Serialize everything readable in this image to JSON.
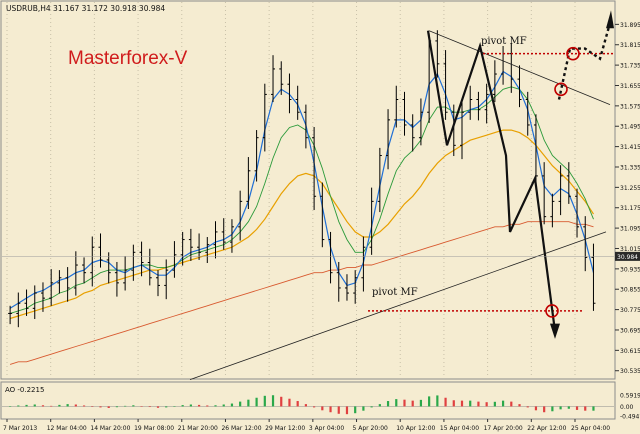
{
  "window": {
    "title": "USDRUB,H4  31.167 31.172 30.918 30.984"
  },
  "brand": {
    "text": "Masterforex-V",
    "color": "#d01c1c"
  },
  "colors": {
    "background": "#f5ecd1",
    "candle": "#000000",
    "ma_fast": "#1f6fd6",
    "ma_mid": "#2b9a3a",
    "ma_slow": "#e8a000",
    "ma_long": "#d85a30",
    "pivot": "#c00000",
    "ao_up": "#2aa84a",
    "ao_down": "#e04040",
    "price_line": "#9a9a9a",
    "price_tag": "#2a2a2a"
  },
  "chart_data": [
    {
      "type": "line",
      "description_label": "candlestick price chart with moving averages",
      "symbol": "USDRUB",
      "timeframe": "H4",
      "ohlc_header": {
        "open": 31.167,
        "high": 31.172,
        "low": 30.918,
        "close": 30.984
      },
      "current_price": "30.984",
      "ylim": [
        30.53,
        31.92
      ],
      "y_ticks": [
        "31.895",
        "31.815",
        "31.735",
        "31.655",
        "31.575",
        "31.495",
        "31.415",
        "31.335",
        "31.255",
        "31.175",
        "31.095",
        "31.015",
        "30.935",
        "30.855",
        "30.775",
        "30.695",
        "30.615",
        "30.535"
      ],
      "x_ticks": [
        "7 Mar 2013",
        "12 Mar 04:00",
        "14 Mar 20:00",
        "19 Mar 08:00",
        "21 Mar 20:00",
        "26 Mar 12:00",
        "29 Mar 12:00",
        "3 Apr 04:00",
        "5 Apr 20:00",
        "10 Apr 12:00",
        "15 Apr 04:00",
        "17 Apr 20:00",
        "22 Apr 12:00",
        "25 Apr 04:00"
      ],
      "price_path": [
        30.76,
        30.8,
        30.78,
        30.84,
        30.82,
        30.88,
        30.9,
        30.86,
        30.95,
        30.92,
        31.02,
        30.97,
        30.92,
        30.88,
        30.93,
        31.0,
        30.96,
        30.9,
        30.87,
        30.93,
        30.99,
        31.05,
        31.02,
        31.0,
        31.03,
        31.08,
        31.04,
        31.1,
        31.2,
        31.32,
        31.45,
        31.62,
        31.72,
        31.66,
        31.6,
        31.55,
        31.45,
        31.22,
        31.05,
        30.92,
        30.86,
        30.84,
        30.9,
        31.02,
        31.2,
        31.38,
        31.52,
        31.6,
        31.5,
        31.45,
        31.55,
        31.83,
        31.74,
        31.55,
        31.42,
        31.55,
        31.6,
        31.56,
        31.62,
        31.7,
        31.78,
        31.68,
        31.6,
        31.5,
        31.3,
        31.14,
        31.2,
        31.3,
        31.22,
        31.1,
        30.98,
        30.8
      ],
      "ma_fast": [
        30.78,
        30.8,
        30.82,
        30.84,
        30.85,
        30.87,
        30.89,
        30.9,
        30.92,
        30.93,
        30.96,
        30.97,
        30.96,
        30.93,
        30.92,
        30.94,
        30.95,
        30.93,
        30.91,
        30.91,
        30.94,
        30.98,
        31.0,
        31.01,
        31.02,
        31.04,
        31.05,
        31.07,
        31.12,
        31.2,
        31.32,
        31.48,
        31.6,
        31.64,
        31.62,
        31.58,
        31.5,
        31.35,
        31.18,
        31.02,
        30.92,
        30.87,
        30.88,
        30.96,
        31.1,
        31.26,
        31.41,
        31.52,
        31.52,
        31.49,
        31.52,
        31.66,
        31.7,
        31.62,
        31.52,
        31.53,
        31.56,
        31.57,
        31.6,
        31.65,
        31.71,
        31.69,
        31.64,
        31.56,
        31.42,
        31.26,
        31.22,
        31.25,
        31.23,
        31.15,
        31.05,
        30.92
      ],
      "ma_mid": [
        30.76,
        30.77,
        30.78,
        30.8,
        30.81,
        30.82,
        30.84,
        30.85,
        30.87,
        30.88,
        30.9,
        30.92,
        30.93,
        30.93,
        30.93,
        30.94,
        30.95,
        30.95,
        30.94,
        30.94,
        30.95,
        30.97,
        30.99,
        31.0,
        31.01,
        31.02,
        31.03,
        31.05,
        31.08,
        31.12,
        31.18,
        31.27,
        31.37,
        31.45,
        31.49,
        31.5,
        31.48,
        31.42,
        31.33,
        31.22,
        31.12,
        31.05,
        31.0,
        31.0,
        31.05,
        31.13,
        31.23,
        31.32,
        31.37,
        31.4,
        31.44,
        31.52,
        31.57,
        31.57,
        31.55,
        31.55,
        31.56,
        31.56,
        31.58,
        31.61,
        31.64,
        31.65,
        31.64,
        31.6,
        31.53,
        31.44,
        31.38,
        31.35,
        31.32,
        31.27,
        31.21,
        31.13
      ],
      "ma_slow": [
        30.74,
        30.75,
        30.76,
        30.77,
        30.78,
        30.79,
        30.8,
        30.81,
        30.82,
        30.84,
        30.85,
        30.87,
        30.88,
        30.89,
        30.9,
        30.91,
        30.92,
        30.93,
        30.93,
        30.94,
        30.95,
        30.96,
        30.97,
        30.98,
        30.99,
        31.0,
        31.01,
        31.02,
        31.04,
        31.06,
        31.09,
        31.13,
        31.18,
        31.23,
        31.27,
        31.3,
        31.31,
        31.3,
        31.27,
        31.22,
        31.17,
        31.12,
        31.08,
        31.06,
        31.06,
        31.08,
        31.11,
        31.15,
        31.19,
        31.22,
        31.26,
        31.31,
        31.35,
        31.38,
        31.4,
        31.42,
        31.44,
        31.45,
        31.46,
        31.47,
        31.48,
        31.48,
        31.47,
        31.45,
        31.42,
        31.38,
        31.34,
        31.31,
        31.28,
        31.24,
        31.2,
        31.15
      ],
      "ma_long": [
        30.56,
        30.57,
        30.57,
        30.58,
        30.59,
        30.6,
        30.61,
        30.62,
        30.63,
        30.64,
        30.65,
        30.66,
        30.67,
        30.68,
        30.69,
        30.7,
        30.71,
        30.72,
        30.73,
        30.74,
        30.75,
        30.76,
        30.77,
        30.78,
        30.79,
        30.8,
        30.81,
        30.82,
        30.83,
        30.84,
        30.85,
        30.86,
        30.87,
        30.88,
        30.89,
        30.9,
        30.91,
        30.92,
        30.92,
        30.93,
        30.93,
        30.94,
        30.94,
        30.95,
        30.95,
        30.96,
        30.97,
        30.98,
        30.99,
        31.0,
        31.01,
        31.02,
        31.03,
        31.04,
        31.05,
        31.06,
        31.07,
        31.08,
        31.09,
        31.1,
        31.1,
        31.11,
        31.11,
        31.12,
        31.12,
        31.12,
        31.12,
        31.12,
        31.12,
        31.11,
        31.11,
        31.1
      ],
      "annotations": {
        "pivot_top": {
          "label": "pivot MF",
          "price": 31.78
        },
        "pivot_bottom": {
          "label": "pivot MF",
          "price": 30.77
        },
        "resistance_line": [
          [
            "17 Apr 20:00",
            31.87
          ],
          [
            "25 Apr 04:00",
            31.58
          ]
        ],
        "support_line": [
          [
            "7 Mar 2013",
            30.5
          ],
          [
            "25 Apr 04:00",
            31.08
          ]
        ],
        "zigzag": [
          31.87,
          31.42,
          31.81,
          31.38,
          31.08,
          31.29,
          30.69
        ]
      }
    },
    {
      "type": "bar",
      "title": "AO -0.2215",
      "ylim": [
        -0.4947,
        0.5919
      ],
      "y_ticks": [
        "0.5919",
        "0.00",
        "-0.4947"
      ],
      "values": [
        0.02,
        0.05,
        0.08,
        0.1,
        0.06,
        0.03,
        0.08,
        0.12,
        0.1,
        0.05,
        0.0,
        -0.05,
        -0.08,
        -0.04,
        0.03,
        0.06,
        0.02,
        -0.03,
        -0.07,
        -0.05,
        0.02,
        0.07,
        0.1,
        0.08,
        0.05,
        0.06,
        0.1,
        0.15,
        0.25,
        0.35,
        0.45,
        0.55,
        0.58,
        0.5,
        0.4,
        0.28,
        0.12,
        -0.05,
        -0.2,
        -0.3,
        -0.38,
        -0.4,
        -0.35,
        -0.22,
        -0.05,
        0.12,
        0.28,
        0.38,
        0.35,
        0.3,
        0.34,
        0.52,
        0.57,
        0.45,
        0.32,
        0.3,
        0.3,
        0.25,
        0.22,
        0.24,
        0.3,
        0.25,
        0.12,
        -0.05,
        -0.2,
        -0.3,
        -0.25,
        -0.15,
        -0.12,
        -0.18,
        -0.22,
        -0.22
      ]
    }
  ]
}
